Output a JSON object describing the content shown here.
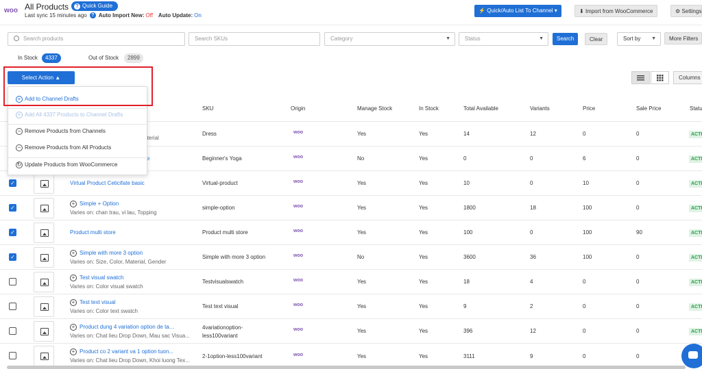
{
  "header": {
    "logo": "woo",
    "title": "All Products",
    "quick_guide": "Quick Guide",
    "sync_text": "Last sync 15 minutes ago",
    "auto_import_label": "Auto Import New:",
    "auto_import_value": "Off",
    "auto_update_label": "Auto Update:",
    "auto_update_value": "On",
    "list_to_channel": "Quick/Auto List To Channel",
    "import_button": "Import from WooCommerce",
    "settings_button": "Settings"
  },
  "filters": {
    "search_products": "Search products",
    "search_skus": "Search SKUs",
    "category": "Category",
    "status": "Status",
    "search_button": "Search",
    "clear_button": "Clear",
    "sort_by": "Sort by",
    "more_filters": "More Filters"
  },
  "tabs": {
    "in_stock_label": "In Stock",
    "in_stock_count": "4337",
    "out_of_stock_label": "Out of Stock",
    "out_of_stock_count": "2899"
  },
  "actions": {
    "select_action": "Select Action",
    "menu": [
      "Add to Channel Drafts",
      "Add All 4337 Products to Channel Drafts",
      "Remove Products from Channels",
      "Remove Products from All Products",
      "Update Products from WooCommerce"
    ],
    "columns_button": "Columns"
  },
  "table": {
    "headers": [
      "SKU",
      "Origin",
      "Manage Stock",
      "In Stock",
      "Total Available",
      "Variants",
      "Price",
      "Sale Price",
      "Status"
    ],
    "status_value": "ACTIVE",
    "origin_value": "woo",
    "rows": [
      {
        "name": "",
        "varies": "ons, Material",
        "sku": "Dress",
        "manage": "Yes",
        "instock": "Yes",
        "total": "14",
        "variants": "12",
        "price": "0",
        "sale": "0"
      },
      {
        "name": "e",
        "varies": "",
        "sku": "Beginner's Yoga",
        "manage": "No",
        "instock": "Yes",
        "total": "0",
        "variants": "0",
        "price": "6",
        "sale": "0"
      },
      {
        "name": "Virtual Product Ceticifate basic",
        "varies": "",
        "sku": "Virtual-product",
        "manage": "Yes",
        "instock": "Yes",
        "total": "10",
        "variants": "0",
        "price": "10",
        "sale": "0"
      },
      {
        "name": "Simple + Option",
        "varies": "Varies on: chan trau, vi lau, Topping",
        "sku": "simple-option",
        "manage": "Yes",
        "instock": "Yes",
        "total": "1800",
        "variants": "18",
        "price": "100",
        "sale": "0"
      },
      {
        "name": "Product multi store",
        "varies": "",
        "sku": "Product multi store",
        "manage": "Yes",
        "instock": "Yes",
        "total": "100",
        "variants": "0",
        "price": "100",
        "sale": "90"
      },
      {
        "name": "Simple with more 3 option",
        "varies": "Varies on: Size, Color, Material, Gender",
        "sku": "Simple with more 3 option",
        "manage": "No",
        "instock": "Yes",
        "total": "3600",
        "variants": "36",
        "price": "100",
        "sale": "0"
      },
      {
        "name": "Test visual swatch",
        "varies": "Varies on: Color visual swatch",
        "sku": "Testvisualswatch",
        "manage": "Yes",
        "instock": "Yes",
        "total": "18",
        "variants": "4",
        "price": "0",
        "sale": "0"
      },
      {
        "name": "Test text visual",
        "varies": "Varies on: Color text swatch",
        "sku": "Test text visual",
        "manage": "Yes",
        "instock": "Yes",
        "total": "9",
        "variants": "2",
        "price": "0",
        "sale": "0"
      },
      {
        "name": "Product dung 4 variation option de ta...",
        "varies": "Varies on: Chat lieu Drop Down, Mau sac Visua...",
        "sku": "4variationoption-",
        "sku2": "less100variant",
        "manage": "Yes",
        "instock": "Yes",
        "total": "396",
        "variants": "12",
        "price": "0",
        "sale": "0"
      },
      {
        "name": "Product co 2 variant va 1 option tuon...",
        "varies": "Varies on: Chat lieu Drop Down, Khoi luong Tex...",
        "sku": "2-1option-less100variant",
        "manage": "Yes",
        "instock": "Yes",
        "total": "3111",
        "variants": "9",
        "price": "0",
        "sale": "0"
      }
    ]
  }
}
